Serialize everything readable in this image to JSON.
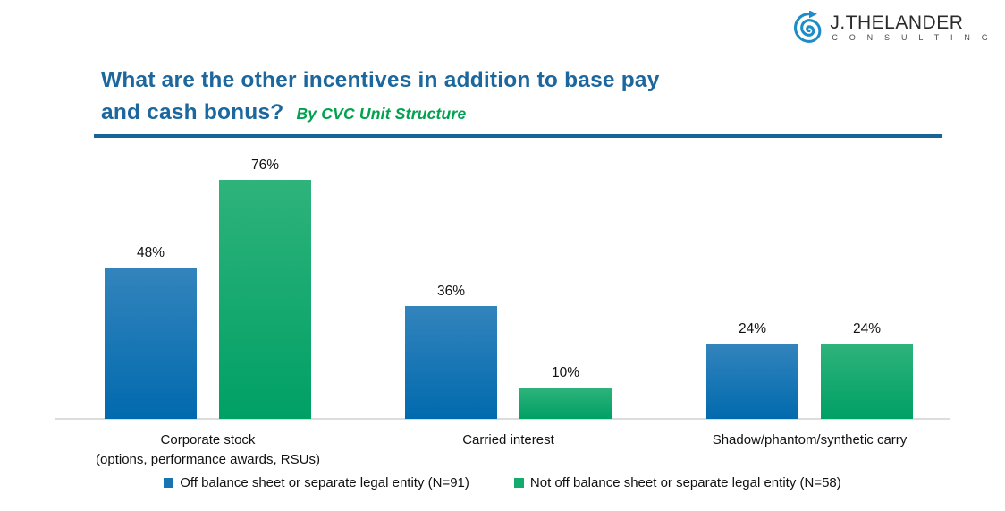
{
  "logo": {
    "brand": "J.THELANDER",
    "brand_sub": "C O N S U L T I N G"
  },
  "title": {
    "line1": "What are the other incentives in addition to base pay",
    "line2": "and cash bonus?",
    "subtitle": "By CVC Unit Structure"
  },
  "colors": {
    "title_blue": "#1b679e",
    "subtitle_green": "#00a24e",
    "divider_blue": "#16649b",
    "axis_gray": "#dcdcdc",
    "series1_swatch": "#1b74b2",
    "series2_swatch": "#14ac6e"
  },
  "chart_data": {
    "type": "bar",
    "title": "What are the other incentives in addition to base pay and cash bonus? By CVC Unit Structure",
    "categories": [
      "Corporate stock\n(options, performance awards, RSUs)",
      "Carried interest",
      "Shadow/phantom/synthetic carry"
    ],
    "series": [
      {
        "name": "Off balance sheet or separate legal entity (N=91)",
        "values": [
          48,
          36,
          24
        ],
        "value_labels": [
          "48%",
          "36%",
          "24%"
        ],
        "swatch": "#1b74b2",
        "gradient_top": "#3384bc",
        "gradient_bottom": "#016aae"
      },
      {
        "name": "Not off balance sheet or separate legal entity (N=58)",
        "values": [
          76,
          10,
          24
        ],
        "value_labels": [
          "76%",
          "10%",
          "24%"
        ],
        "swatch": "#14ac6e",
        "gradient_top": "#2eb37b",
        "gradient_bottom": "#00a065"
      }
    ],
    "xlabel": "",
    "ylabel": "",
    "ylim": [
      0,
      85
    ],
    "grid": false,
    "value_labels_shown": true,
    "legend_position": "bottom"
  }
}
